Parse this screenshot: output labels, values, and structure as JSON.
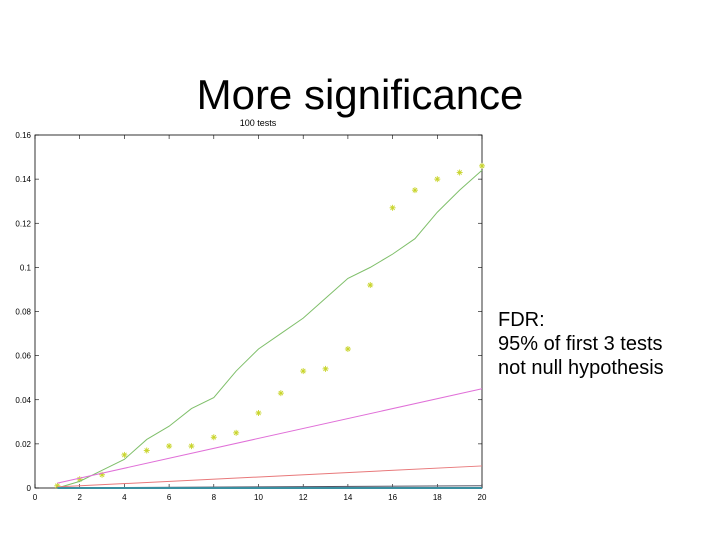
{
  "slide": {
    "title": "More significance",
    "note": [
      "FDR:",
      "95% of first 3 tests",
      "not null hypothesis"
    ]
  },
  "chart_data": {
    "type": "line",
    "title": "100 tests",
    "xlabel": "",
    "ylabel": "",
    "xlim": [
      0,
      20
    ],
    "ylim": [
      0,
      0.16
    ],
    "x_ticks": [
      0,
      2,
      4,
      6,
      8,
      10,
      12,
      14,
      16,
      18,
      20
    ],
    "y_ticks": [
      0,
      0.02,
      0.04,
      0.06,
      0.08,
      0.1,
      0.12,
      0.14,
      0.16
    ],
    "grid": false,
    "legend": "none",
    "series": [
      {
        "kind": "scatter",
        "marker": "*",
        "color": "#c8d42a",
        "x": [
          1,
          2,
          3,
          4,
          5,
          6,
          7,
          8,
          9,
          10,
          11,
          12,
          13,
          14,
          15,
          16,
          17,
          18,
          19,
          20
        ],
        "y": [
          0.001,
          0.004,
          0.006,
          0.015,
          0.017,
          0.019,
          0.019,
          0.023,
          0.025,
          0.034,
          0.043,
          0.053,
          0.054,
          0.063,
          0.092,
          0.127,
          0.135,
          0.14,
          0.143,
          0.146
        ]
      },
      {
        "kind": "line",
        "color": "#7fbf6a",
        "x": [
          1,
          2,
          3,
          4,
          5,
          6,
          7,
          8,
          9,
          10,
          11,
          12,
          13,
          14,
          15,
          16,
          17,
          18,
          19,
          20
        ],
        "y": [
          0.0,
          0.003,
          0.008,
          0.013,
          0.022,
          0.028,
          0.036,
          0.041,
          0.053,
          0.063,
          0.07,
          0.077,
          0.086,
          0.095,
          0.1,
          0.106,
          0.113,
          0.125,
          0.135,
          0.144
        ]
      },
      {
        "kind": "line",
        "color": "#e070d8",
        "x": [
          1,
          20
        ],
        "y": [
          0.0022,
          0.045
        ]
      },
      {
        "kind": "line",
        "color": "#e8787a",
        "x": [
          1,
          20
        ],
        "y": [
          0.0005,
          0.01
        ]
      },
      {
        "kind": "line",
        "color": "#555566",
        "x": [
          1,
          20
        ],
        "y": [
          5e-05,
          0.001
        ]
      },
      {
        "kind": "line",
        "color": "#3a8fa0",
        "x": [
          1,
          20
        ],
        "y": [
          0.0,
          0.0
        ]
      }
    ]
  }
}
